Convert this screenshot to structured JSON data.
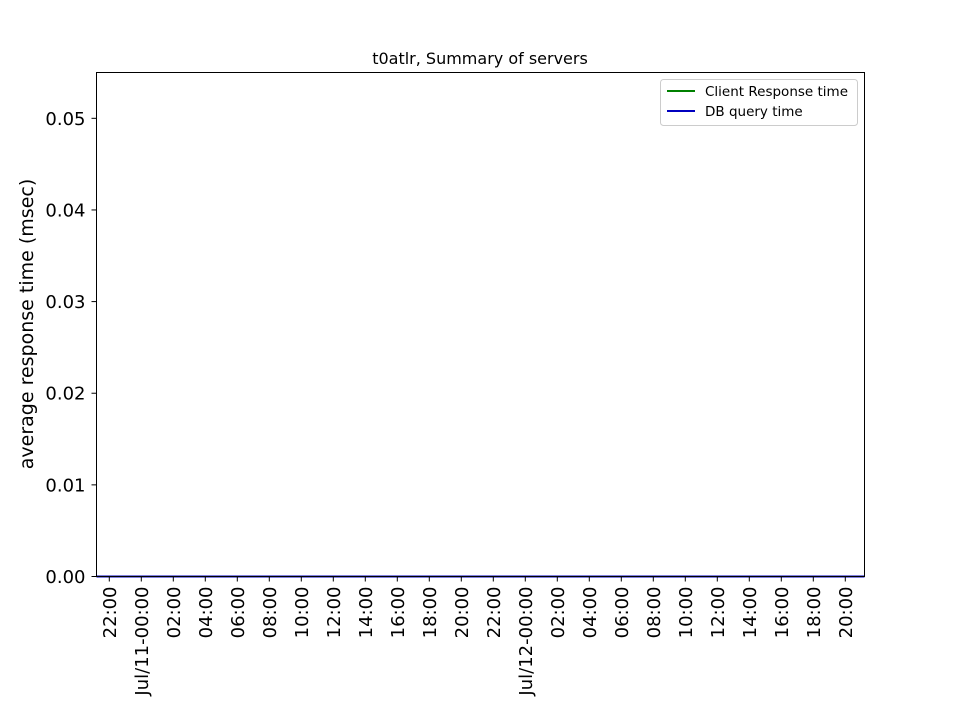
{
  "chart_data": {
    "type": "line",
    "title": "t0atlr, Summary of servers",
    "xlabel": "",
    "ylabel": "average response time (msec)",
    "ylim": [
      0,
      0.055
    ],
    "yticks": [
      "0.00",
      "0.01",
      "0.02",
      "0.03",
      "0.04",
      "0.05"
    ],
    "ytick_values": [
      0,
      0.01,
      0.02,
      0.03,
      0.04,
      0.05
    ],
    "xlim_hours": [
      -2.8,
      45.2
    ],
    "xticks": [
      {
        "label": "22:00",
        "hours": -2
      },
      {
        "label": "Jul/11-00:00",
        "hours": 0
      },
      {
        "label": "02:00",
        "hours": 2
      },
      {
        "label": "04:00",
        "hours": 4
      },
      {
        "label": "06:00",
        "hours": 6
      },
      {
        "label": "08:00",
        "hours": 8
      },
      {
        "label": "10:00",
        "hours": 10
      },
      {
        "label": "12:00",
        "hours": 12
      },
      {
        "label": "14:00",
        "hours": 14
      },
      {
        "label": "16:00",
        "hours": 16
      },
      {
        "label": "18:00",
        "hours": 18
      },
      {
        "label": "20:00",
        "hours": 20
      },
      {
        "label": "22:00",
        "hours": 22
      },
      {
        "label": "Jul/12-00:00",
        "hours": 24
      },
      {
        "label": "02:00",
        "hours": 26
      },
      {
        "label": "04:00",
        "hours": 28
      },
      {
        "label": "06:00",
        "hours": 30
      },
      {
        "label": "08:00",
        "hours": 32
      },
      {
        "label": "10:00",
        "hours": 34
      },
      {
        "label": "12:00",
        "hours": 36
      },
      {
        "label": "14:00",
        "hours": 38
      },
      {
        "label": "16:00",
        "hours": 40
      },
      {
        "label": "18:00",
        "hours": 42
      },
      {
        "label": "20:00",
        "hours": 44
      }
    ],
    "series": [
      {
        "name": "Client Response time",
        "color": "#008000",
        "x": [
          -2.8,
          45.2
        ],
        "y": [
          0,
          0
        ]
      },
      {
        "name": "DB query time",
        "color": "#0000bf",
        "x": [
          -2.8,
          45.2
        ],
        "y": [
          0,
          0
        ]
      }
    ],
    "legend": "top-right",
    "grid": false
  }
}
